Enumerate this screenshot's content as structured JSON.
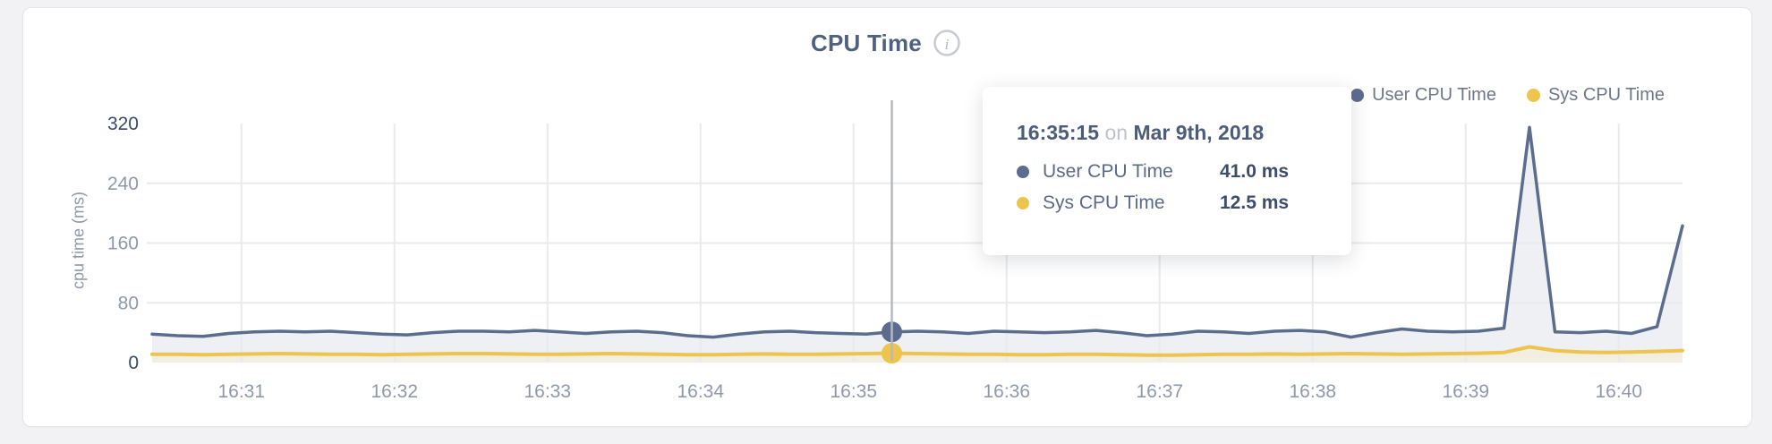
{
  "header": {
    "title": "CPU Time",
    "info_icon": "i"
  },
  "legend": {
    "items": [
      {
        "label": "User CPU Time",
        "color": "#5c6c8e"
      },
      {
        "label": "Sys CPU Time",
        "color": "#ecc44e"
      }
    ]
  },
  "tooltip": {
    "time": "16:35:15",
    "connector": "on",
    "date": "Mar 9th, 2018",
    "rows": [
      {
        "label": "User CPU Time",
        "value": "41.0 ms",
        "color": "#5c6c8e"
      },
      {
        "label": "Sys CPU Time",
        "value": "12.5 ms",
        "color": "#ecc44e"
      }
    ]
  },
  "chart_data": {
    "type": "line",
    "title": "CPU Time",
    "xlabel": "",
    "ylabel": "cpu time (ms)",
    "ylim": [
      0,
      320
    ],
    "yticks": [
      0,
      80,
      160,
      240,
      320
    ],
    "emphasized_yticks": [
      0,
      320
    ],
    "xticks": [
      "16:31",
      "16:32",
      "16:33",
      "16:34",
      "16:35",
      "16:36",
      "16:37",
      "16:38",
      "16:39",
      "16:40"
    ],
    "x_start_time": "16:30:25",
    "x_end_time": "16:40:25",
    "sample_interval_seconds": 10,
    "date": "Mar 9th, 2018",
    "grid": true,
    "legend_position": "top-right",
    "series": [
      {
        "name": "User CPU Time",
        "color": "#5c6c8e",
        "fill": "#eef0f4",
        "unit": "ms",
        "values": [
          38,
          36,
          35,
          39,
          41,
          42,
          41,
          42,
          40,
          38,
          37,
          40,
          42,
          42,
          41,
          43,
          41,
          39,
          41,
          42,
          40,
          36,
          34,
          38,
          41,
          42,
          40,
          39,
          38,
          41,
          42,
          41,
          39,
          42,
          41,
          40,
          41,
          43,
          40,
          36,
          38,
          42,
          41,
          39,
          42,
          43,
          41,
          34,
          40,
          45,
          42,
          41,
          42,
          46,
          315,
          41,
          40,
          42,
          39,
          48,
          183
        ]
      },
      {
        "name": "Sys CPU Time",
        "color": "#ecc44e",
        "fill": "#f2eee1",
        "unit": "ms",
        "values": [
          11,
          11,
          10.5,
          11,
          11.5,
          12,
          11.5,
          11,
          11,
          10.5,
          11,
          11.5,
          12,
          12,
          11.5,
          11,
          11,
          11.5,
          12,
          11.5,
          11,
          10.5,
          10.5,
          11,
          11.5,
          11,
          11,
          11.5,
          12,
          12.5,
          12,
          11.5,
          11,
          11,
          10.5,
          10.5,
          11,
          11,
          10.5,
          10,
          10,
          10.5,
          11,
          11,
          11.5,
          11,
          11.5,
          12,
          11.5,
          11,
          11.5,
          12,
          12.5,
          13.5,
          21,
          16,
          14,
          13.5,
          14,
          15,
          16
        ]
      }
    ],
    "highlight": {
      "index": 29,
      "time": "16:35:15",
      "user_cpu_ms": 41.0,
      "sys_cpu_ms": 12.5,
      "crosshair_color": "#b5b8be"
    },
    "colors": {
      "grid": "#e9eaec",
      "tick_label": "#8e99ab",
      "tick_label_emphasized": "#374a66",
      "title": "#50617f"
    }
  }
}
